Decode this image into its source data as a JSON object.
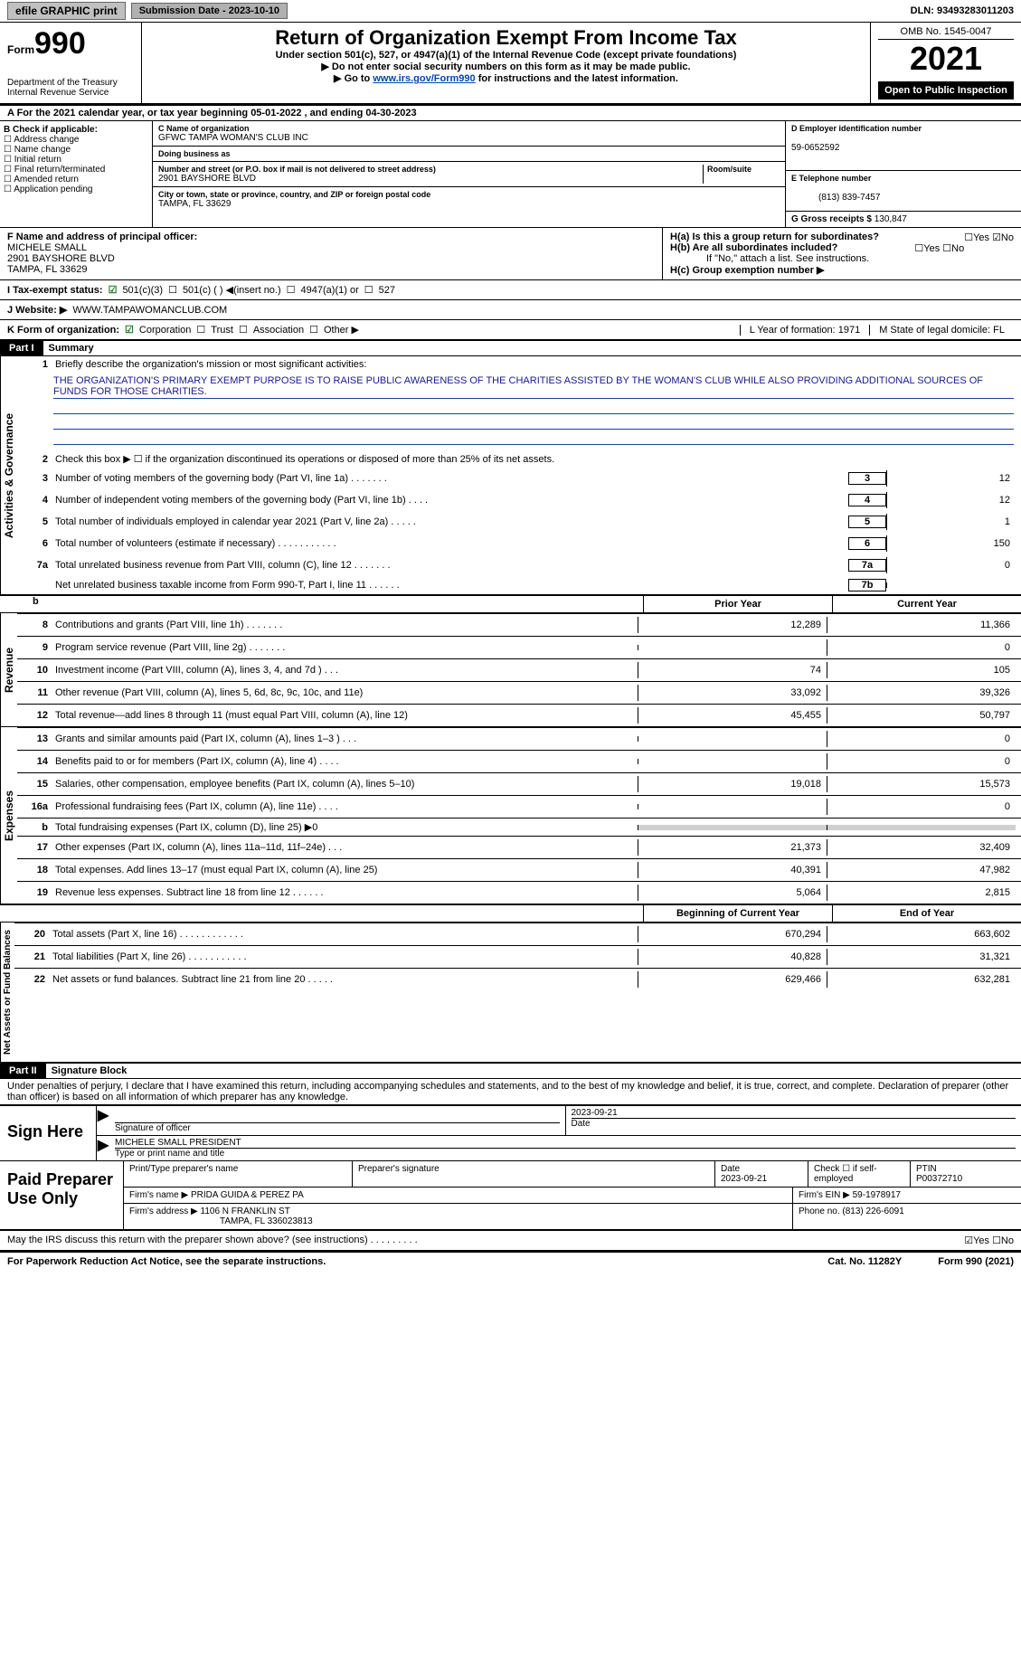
{
  "topbar": {
    "efile": "efile GRAPHIC print",
    "subdate_label": "Submission Date - 2023-10-10",
    "dln": "DLN: 93493283011203"
  },
  "header": {
    "form_small": "Form",
    "form_num": "990",
    "dept1": "Department of the Treasury",
    "dept2": "Internal Revenue Service",
    "title": "Return of Organization Exempt From Income Tax",
    "sub1": "Under section 501(c), 527, or 4947(a)(1) of the Internal Revenue Code (except private foundations)",
    "sub2": "▶ Do not enter social security numbers on this form as it may be made public.",
    "sub3_prefix": "▶ Go to ",
    "sub3_link": "www.irs.gov/Form990",
    "sub3_suffix": " for instructions and the latest information.",
    "omb": "OMB No. 1545-0047",
    "year": "2021",
    "open": "Open to Public Inspection"
  },
  "periodA": "A For the 2021 calendar year, or tax year beginning 05-01-2022   , and ending 04-30-2023",
  "colB": {
    "label": "B Check if applicable:",
    "items": [
      "Address change",
      "Name change",
      "Initial return",
      "Final return/terminated",
      "Amended return",
      "Application pending"
    ]
  },
  "colC": {
    "name_lbl": "C Name of organization",
    "name": "GFWC TAMPA WOMAN'S CLUB INC",
    "dba_lbl": "Doing business as",
    "dba": "",
    "street_lbl": "Number and street (or P.O. box if mail is not delivered to street address)",
    "room_lbl": "Room/suite",
    "street": "2901 BAYSHORE BLVD",
    "city_lbl": "City or town, state or province, country, and ZIP or foreign postal code",
    "city": "TAMPA, FL  33629"
  },
  "colD": {
    "ein_lbl": "D Employer identification number",
    "ein": "59-0652592",
    "phone_lbl": "E Telephone number",
    "phone": "(813) 839-7457",
    "gross_lbl": "G Gross receipts $",
    "gross": "130,847"
  },
  "principal": {
    "lblF": "F Name and address of principal officer:",
    "name": "MICHELE SMALL",
    "addr1": "2901 BAYSHORE BLVD",
    "addr2": "TAMPA, FL  33629",
    "Ha": "H(a)  Is this a group return for subordinates?",
    "Ha_ans": "☐Yes ☑No",
    "Hb": "H(b)  Are all subordinates included?",
    "Hb_ans": "☐Yes ☐No",
    "Hb_note": "If \"No,\" attach a list. See instructions.",
    "Hc": "H(c)  Group exemption number ▶"
  },
  "taxrow": {
    "I": "I   Tax-exempt status:",
    "c3": "501(c)(3)",
    "c": "501(c) (  ) ◀(insert no.)",
    "a1": "4947(a)(1) or",
    "s527": "527"
  },
  "webrow": {
    "J": "J  Website: ▶",
    "url": "WWW.TAMPAWOMANCLUB.COM"
  },
  "korg": {
    "K": "K Form of organization:",
    "corp": "Corporation",
    "trust": "Trust",
    "assoc": "Association",
    "other": "Other ▶",
    "L": "L Year of formation: 1971",
    "M": "M State of legal domicile: FL"
  },
  "part1": {
    "hdr": "Part I",
    "title": "Summary",
    "q1": "Briefly describe the organization's mission or most significant activities:",
    "mission": "THE ORGANIZATION'S PRIMARY EXEMPT PURPOSE IS TO RAISE PUBLIC AWARENESS OF THE CHARITIES ASSISTED BY THE WOMAN'S CLUB WHILE ALSO PROVIDING ADDITIONAL SOURCES OF FUNDS FOR THOSE CHARITIES.",
    "q2": "Check this box ▶ ☐ if the organization discontinued its operations or disposed of more than 25% of its net assets.",
    "vlabel_ag": "Activities & Governance",
    "vlabel_rev": "Revenue",
    "vlabel_exp": "Expenses",
    "vlabel_na": "Net Assets or Fund Balances",
    "rows_small": [
      {
        "n": "3",
        "t": "Number of voting members of the governing body (Part VI, line 1a)  .   .   .   .   .   .   .",
        "box": "3",
        "v": "12"
      },
      {
        "n": "4",
        "t": "Number of independent voting members of the governing body (Part VI, line 1b)  .   .   .   .",
        "box": "4",
        "v": "12"
      },
      {
        "n": "5",
        "t": "Total number of individuals employed in calendar year 2021 (Part V, line 2a)  .   .   .   .   .",
        "box": "5",
        "v": "1"
      },
      {
        "n": "6",
        "t": "Total number of volunteers (estimate if necessary)   .   .   .   .   .   .   .   .   .   .   .",
        "box": "6",
        "v": "150"
      },
      {
        "n": "7a",
        "t": "Total unrelated business revenue from Part VIII, column (C), line 12  .   .   .   .   .   .   .",
        "box": "7a",
        "v": "0"
      },
      {
        "n": "",
        "t": "Net unrelated business taxable income from Form 990-T, Part I, line 11  .   .   .   .   .   .",
        "box": "7b",
        "v": ""
      }
    ],
    "hdr_prior": "Prior Year",
    "hdr_curr": "Current Year",
    "rev_rows": [
      {
        "n": "8",
        "t": "Contributions and grants (Part VIII, line 1h)   .   .   .   .   .   .   .",
        "py": "12,289",
        "cy": "11,366"
      },
      {
        "n": "9",
        "t": "Program service revenue (Part VIII, line 2g)   .   .   .   .   .   .   .",
        "py": "",
        "cy": "0"
      },
      {
        "n": "10",
        "t": "Investment income (Part VIII, column (A), lines 3, 4, and 7d )  .   .   .",
        "py": "74",
        "cy": "105"
      },
      {
        "n": "11",
        "t": "Other revenue (Part VIII, column (A), lines 5, 6d, 8c, 9c, 10c, and 11e)",
        "py": "33,092",
        "cy": "39,326"
      },
      {
        "n": "12",
        "t": "Total revenue—add lines 8 through 11 (must equal Part VIII, column (A), line 12)",
        "py": "45,455",
        "cy": "50,797"
      }
    ],
    "exp_rows": [
      {
        "n": "13",
        "t": "Grants and similar amounts paid (Part IX, column (A), lines 1–3 )  .   .   .",
        "py": "",
        "cy": "0"
      },
      {
        "n": "14",
        "t": "Benefits paid to or for members (Part IX, column (A), line 4)  .   .   .   .",
        "py": "",
        "cy": "0"
      },
      {
        "n": "15",
        "t": "Salaries, other compensation, employee benefits (Part IX, column (A), lines 5–10)",
        "py": "19,018",
        "cy": "15,573"
      },
      {
        "n": "16a",
        "t": "Professional fundraising fees (Part IX, column (A), line 11e)  .   .   .   .",
        "py": "",
        "cy": "0"
      },
      {
        "n": "b",
        "t": "Total fundraising expenses (Part IX, column (D), line 25) ▶0",
        "py": "shade",
        "cy": "shade"
      },
      {
        "n": "17",
        "t": "Other expenses (Part IX, column (A), lines 11a–11d, 11f–24e)  .   .   .",
        "py": "21,373",
        "cy": "32,409"
      },
      {
        "n": "18",
        "t": "Total expenses. Add lines 13–17 (must equal Part IX, column (A), line 25)",
        "py": "40,391",
        "cy": "47,982"
      },
      {
        "n": "19",
        "t": "Revenue less expenses. Subtract line 18 from line 12  .   .   .   .   .   .",
        "py": "5,064",
        "cy": "2,815"
      }
    ],
    "hdr_boy": "Beginning of Current Year",
    "hdr_eoy": "End of Year",
    "na_rows": [
      {
        "n": "20",
        "t": "Total assets (Part X, line 16)  .   .   .   .   .   .   .   .   .   .   .   .",
        "py": "670,294",
        "cy": "663,602"
      },
      {
        "n": "21",
        "t": "Total liabilities (Part X, line 26)  .   .   .   .   .   .   .   .   .   .   .",
        "py": "40,828",
        "cy": "31,321"
      },
      {
        "n": "22",
        "t": "Net assets or fund balances. Subtract line 21 from line 20  .   .   .   .   .",
        "py": "629,466",
        "cy": "632,281"
      }
    ]
  },
  "part2": {
    "hdr": "Part II",
    "title": "Signature Block",
    "decl": "Under penalties of perjury, I declare that I have examined this return, including accompanying schedules and statements, and to the best of my knowledge and belief, it is true, correct, and complete. Declaration of preparer (other than officer) is based on all information of which preparer has any knowledge.",
    "sign_here": "Sign Here",
    "sig_of_officer": "Signature of officer",
    "sig_date": "2023-09-21",
    "date_lbl": "Date",
    "officer_name": "MICHELE SMALL  PRESIDENT",
    "type_name": "Type or print name and title",
    "paid": "Paid Preparer Use Only",
    "prep_name_lbl": "Print/Type preparer's name",
    "prep_sig_lbl": "Preparer's signature",
    "prep_date_lbl": "Date",
    "prep_date": "2023-09-21",
    "check_if": "Check ☐ if self-employed",
    "ptin_lbl": "PTIN",
    "ptin": "P00372710",
    "firm_name_lbl": "Firm's name    ▶",
    "firm_name": "PRIDA GUIDA & PEREZ PA",
    "firm_ein_lbl": "Firm's EIN ▶",
    "firm_ein": "59-1978917",
    "firm_addr_lbl": "Firm's address ▶",
    "firm_addr1": "1106 N FRANKLIN ST",
    "firm_addr2": "TAMPA, FL  336023813",
    "firm_phone_lbl": "Phone no.",
    "firm_phone": "(813) 226-6091",
    "may_irs": "May the IRS discuss this return with the preparer shown above? (see instructions)   .   .   .   .   .   .   .   .   .",
    "may_ans": "☑Yes  ☐No"
  },
  "footer": {
    "pra": "For Paperwork Reduction Act Notice, see the separate instructions.",
    "cat": "Cat. No. 11282Y",
    "form": "Form 990 (2021)"
  }
}
